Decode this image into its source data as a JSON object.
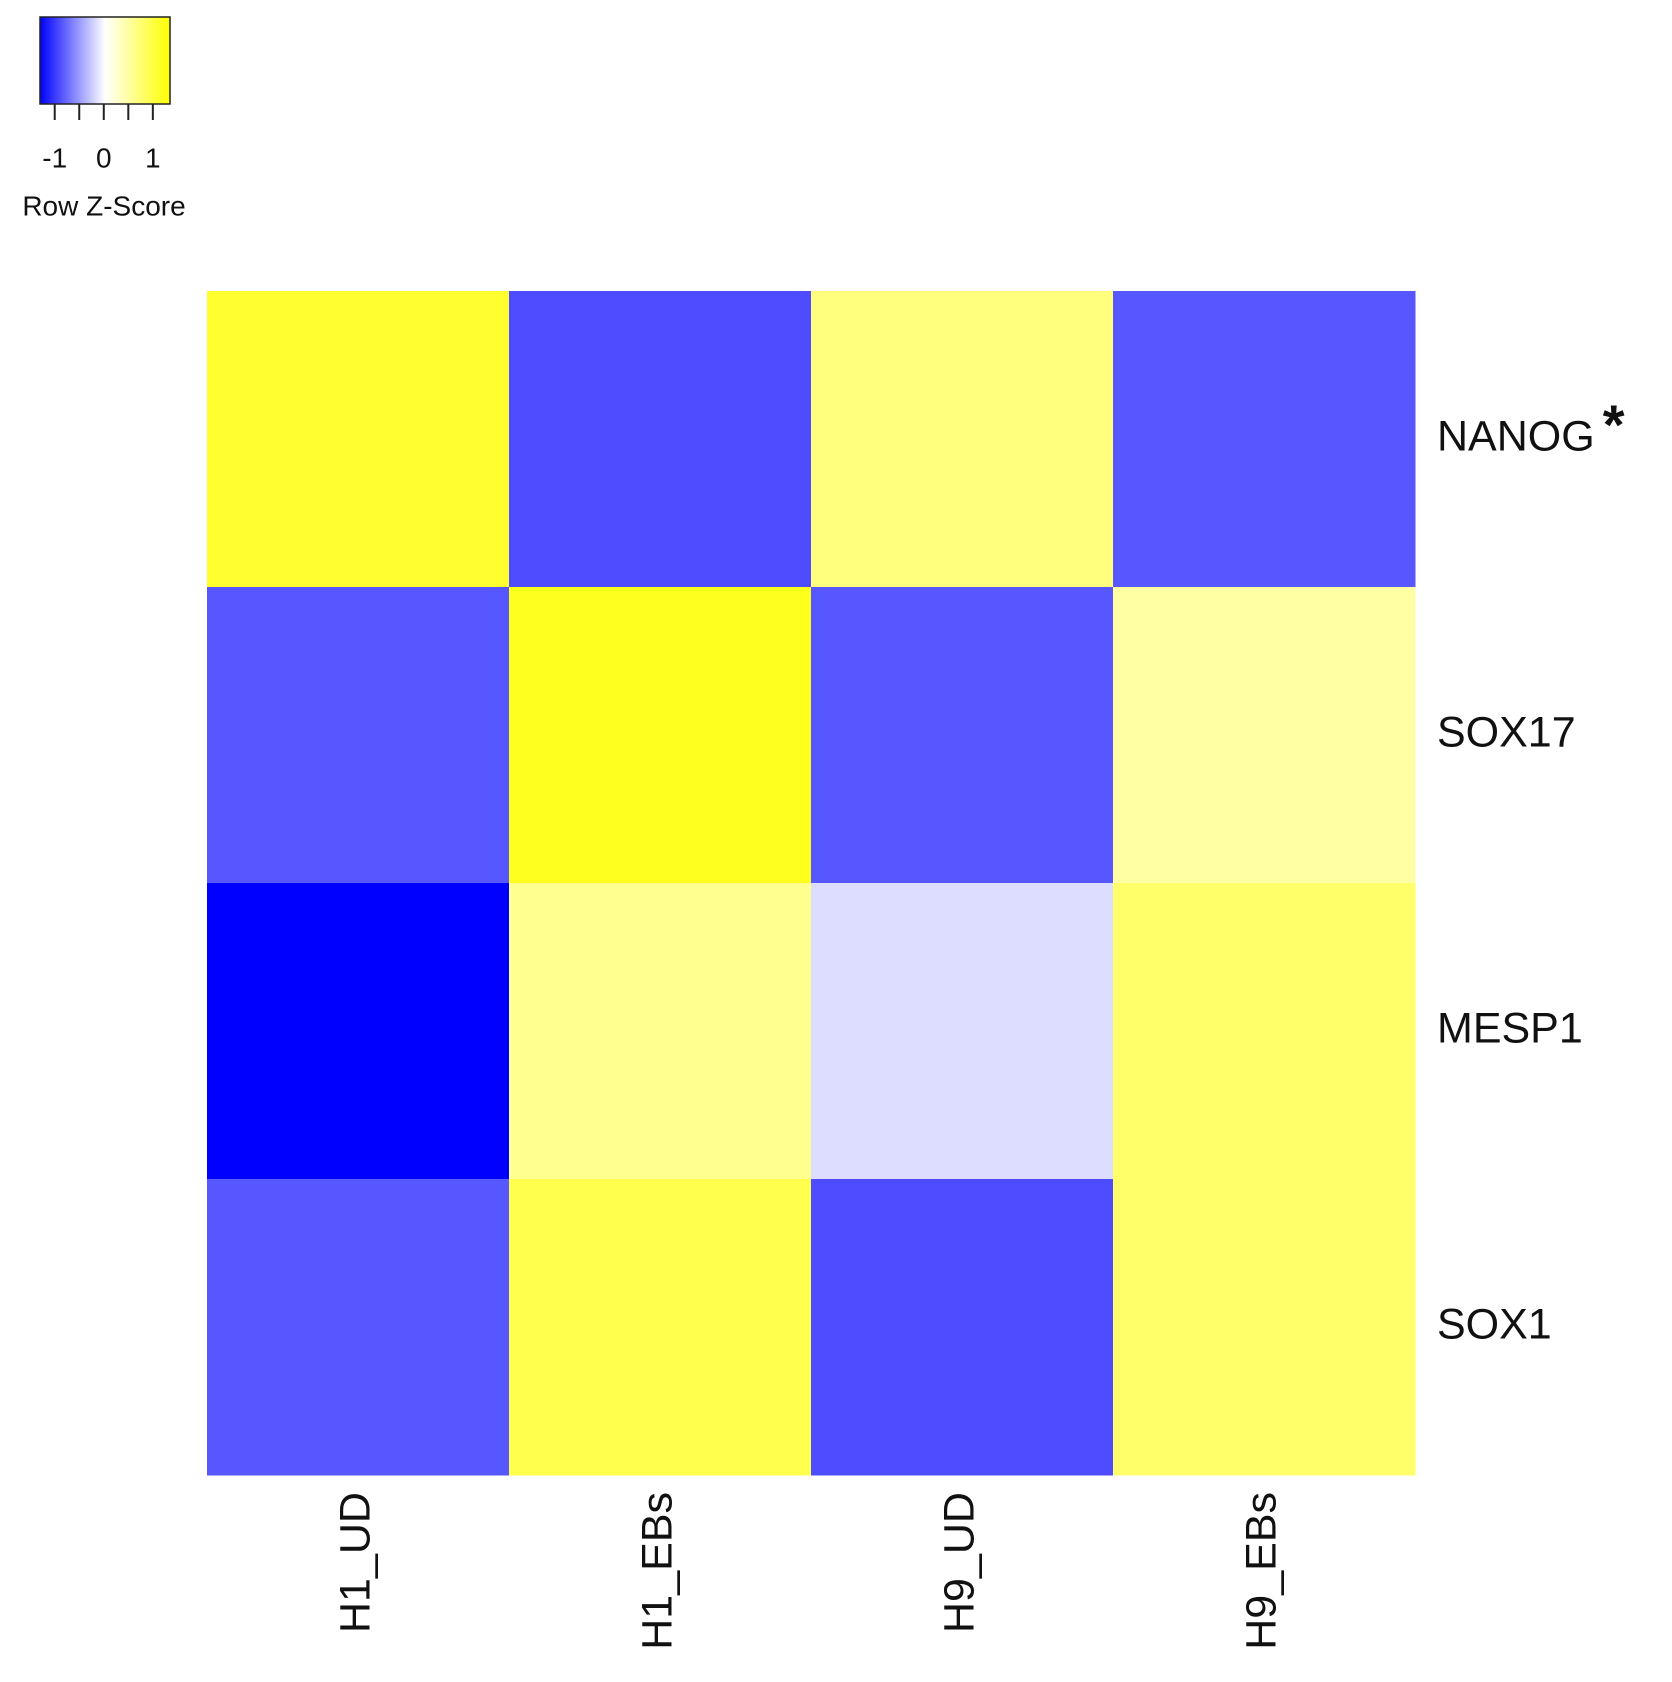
{
  "chart_data": {
    "type": "heatmap",
    "rows": [
      "NANOG",
      "SOX17",
      "MESP1",
      "SOX1"
    ],
    "columns": [
      "H1_UD",
      "H1_EBs",
      "H9_UD",
      "H9_EBs"
    ],
    "values": [
      [
        1.1,
        -0.9,
        0.7,
        -0.85
      ],
      [
        -0.85,
        1.2,
        -0.85,
        0.5
      ],
      [
        -1.4,
        0.6,
        -0.15,
        0.8
      ],
      [
        -0.85,
        0.95,
        -0.9,
        0.8
      ]
    ],
    "colors": [
      "#0000ff",
      "#ffffff",
      "#ffff00"
    ],
    "annotations": [
      {
        "row": 0,
        "text": "*"
      }
    ],
    "color_key": {
      "title": "Row Z-Score",
      "zlim": [
        -1.3,
        1.35
      ],
      "ticks": [
        -1,
        0,
        1
      ],
      "minor_ticks": [
        -0.5,
        0.5
      ]
    }
  }
}
